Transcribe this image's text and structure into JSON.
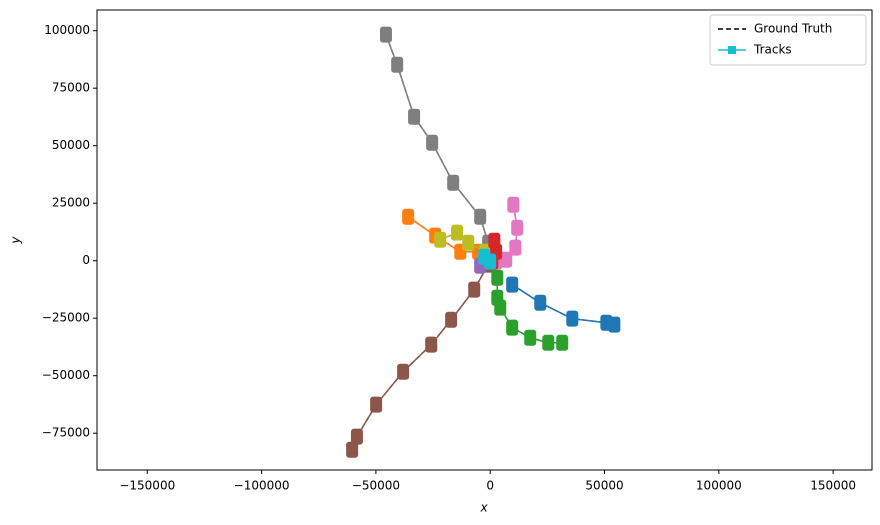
{
  "chart_data": {
    "type": "line",
    "x_label": "x",
    "y_label": "y",
    "xlim": [
      -172000,
      167000
    ],
    "ylim": [
      -91000,
      109000
    ],
    "xticks": [
      {
        "value": -150000,
        "label": "−150000"
      },
      {
        "value": -100000,
        "label": "−100000"
      },
      {
        "value": -50000,
        "label": "−50000"
      },
      0,
      50000,
      100000,
      150000
    ],
    "yticks": [
      {
        "value": -75000,
        "label": "−75000"
      },
      {
        "value": -50000,
        "label": "−50000"
      },
      {
        "value": -25000,
        "label": "−25000"
      },
      0,
      25000,
      50000,
      75000,
      100000
    ],
    "legend_position": "upper right",
    "legend": [
      {
        "name": "Ground Truth",
        "color": "#000000",
        "style": "dashed"
      },
      {
        "name": "Tracks",
        "color": "#17becf",
        "style": "solid-square"
      }
    ],
    "series": [
      {
        "color": "#7f7f7f",
        "x": [
          -45600,
          -40700,
          -33300,
          -25400,
          -16200,
          -4400,
          -900
        ],
        "y": [
          98300,
          85200,
          62600,
          51300,
          33900,
          19100,
          7800
        ]
      },
      {
        "color": "#8c564b",
        "x": [
          -60400,
          -58300,
          -49900,
          -38100,
          -25800,
          -17100,
          -7000,
          -900
        ],
        "y": [
          -82200,
          -76500,
          -62600,
          -48300,
          -36500,
          -25700,
          -12600,
          -1700
        ]
      },
      {
        "color": "#1f77b4",
        "x": [
          9600,
          21900,
          35900,
          50800,
          54300
        ],
        "y": [
          -10400,
          -18300,
          -25200,
          -27000,
          -27800
        ]
      },
      {
        "color": "#2ca02c",
        "x": [
          3100,
          3100,
          4400,
          9600,
          17500,
          25400,
          31500
        ],
        "y": [
          -7400,
          -16100,
          -20400,
          -29100,
          -33500,
          -35700,
          -35700
        ]
      },
      {
        "color": "#ff7f0e",
        "x": [
          -35900,
          -24100,
          -13100,
          -5300,
          0
        ],
        "y": [
          19100,
          10900,
          3900,
          3900,
          1300
        ]
      },
      {
        "color": "#bcbd22",
        "x": [
          -21900,
          -14500,
          -9600,
          -2200
        ],
        "y": [
          9100,
          12200,
          7800,
          3900
        ]
      },
      {
        "color": "#e377c2",
        "x": [
          10100,
          11800,
          11000,
          7000,
          2600
        ],
        "y": [
          24300,
          14300,
          5700,
          400,
          -400
        ]
      },
      {
        "color": "#d62728",
        "x": [
          1800,
          2600,
          900
        ],
        "y": [
          8700,
          3900,
          -400
        ]
      },
      {
        "color": "#9467bd",
        "x": [
          -4400,
          -900
        ],
        "y": [
          -2200,
          -400
        ]
      },
      {
        "color": "#17becf",
        "x": [
          -2600,
          0
        ],
        "y": [
          1700,
          -400
        ]
      }
    ]
  }
}
